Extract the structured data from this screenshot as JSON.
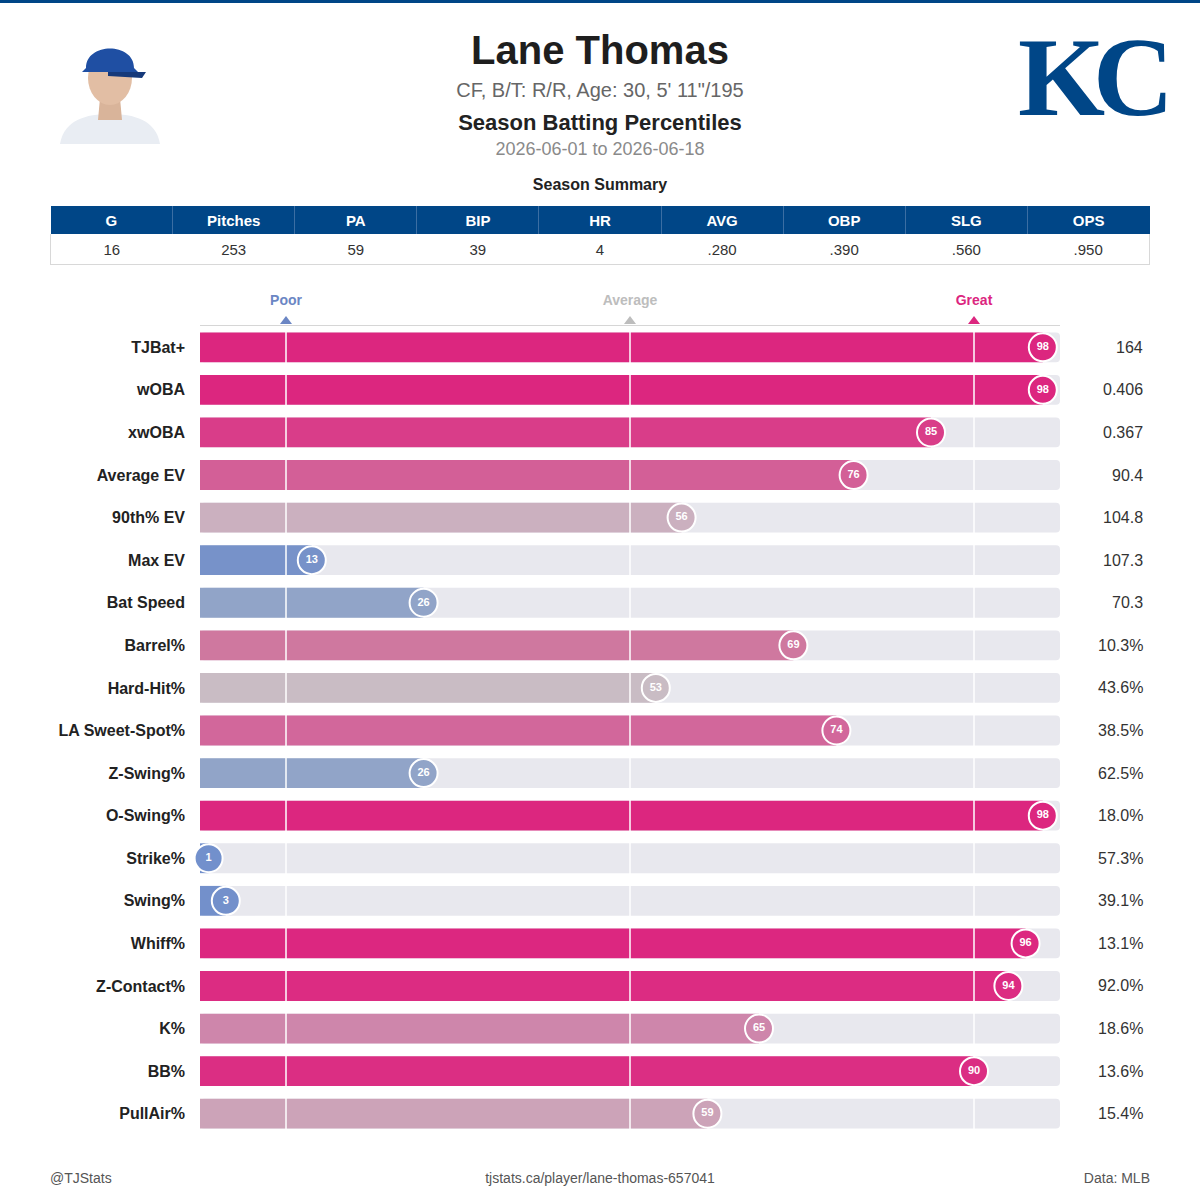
{
  "header": {
    "name": "Lane Thomas",
    "bio": "CF, B/T: R/R, Age: 30, 5' 11\"/195",
    "subtitle": "Season Batting Percentiles",
    "dates": "2026-06-01 to 2026-06-18",
    "logo": "KC"
  },
  "summary": {
    "title": "Season Summary",
    "columns": [
      "G",
      "Pitches",
      "PA",
      "BIP",
      "HR",
      "AVG",
      "OBP",
      "SLG",
      "OPS"
    ],
    "values": [
      "16",
      "253",
      "59",
      "39",
      "4",
      ".280",
      ".390",
      ".560",
      ".950"
    ]
  },
  "chart_data": {
    "type": "bar",
    "orientation": "horizontal",
    "data_labels": true,
    "grid": true,
    "categories": [
      "TJBat+",
      "wOBA",
      "xwOBA",
      "Average EV",
      "90th% EV",
      "Max EV",
      "Bat Speed",
      "Barrel%",
      "Hard-Hit%",
      "LA Sweet-Spot%",
      "Z-Swing%",
      "O-Swing%",
      "Strike%",
      "Swing%",
      "Whiff%",
      "Z-Contact%",
      "K%",
      "BB%",
      "PullAir%"
    ],
    "values": [
      98,
      98,
      85,
      76,
      56,
      13,
      26,
      69,
      53,
      74,
      26,
      98,
      1,
      3,
      96,
      94,
      65,
      90,
      59
    ],
    "colors": [
      "#dc267f",
      "#dc267f",
      "#d93d89",
      "#d35f97",
      "#cbb0bf",
      "#7792c9",
      "#91a4c8",
      "#cf789f",
      "#c9bcc4",
      "#d2679b",
      "#91a4c8",
      "#dc267f",
      "#7290cc",
      "#7390cb",
      "#dc2780",
      "#dc2c82",
      "#ce86ab",
      "#db2e83",
      "#cca3b8"
    ],
    "stat_labels": [
      "164",
      "0.406",
      "0.367",
      "90.4",
      "104.8",
      "107.3",
      "70.3",
      "10.3%",
      "43.6%",
      "38.5%",
      "62.5%",
      "18.0%",
      "57.3%",
      "39.1%",
      "13.1%",
      "92.0%",
      "18.6%",
      "13.6%",
      "15.4%"
    ],
    "xlim": [
      0,
      100
    ],
    "xticks": [
      {
        "value": 10,
        "label": "Poor"
      },
      {
        "value": 50,
        "label": "Average"
      },
      {
        "value": 90,
        "label": "Great"
      }
    ]
  },
  "footer": {
    "left": "@TJStats",
    "center": "tjstats.ca/player/lane-thomas-657041",
    "right": "Data: MLB"
  }
}
